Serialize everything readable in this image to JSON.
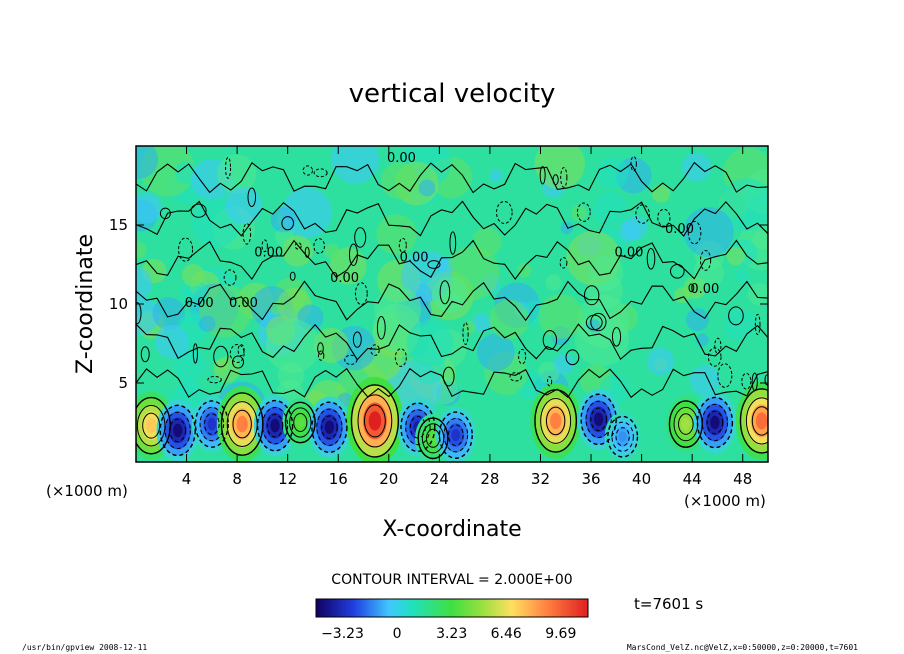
{
  "chart_data": {
    "type": "heatmap",
    "title": "vertical velocity",
    "xlabel": "X-coordinate",
    "ylabel": "Z-coordinate",
    "x_unit_left": "(×1000 m)",
    "x_unit_right": "(×1000 m)",
    "xlim": [
      0,
      50
    ],
    "ylim": [
      0,
      20
    ],
    "x_ticks": [
      "4",
      "8",
      "12",
      "16",
      "20",
      "24",
      "28",
      "32",
      "36",
      "40",
      "44",
      "48"
    ],
    "y_ticks": [
      "5",
      "10",
      "15"
    ],
    "contour_interval_label": "CONTOUR INTERVAL = 2.000E+00",
    "contour_labels": [
      "0.00",
      "0.00",
      "0.00",
      "0.00",
      "0.00",
      "0.00",
      "0.00",
      "0.00",
      "0.00"
    ],
    "colorbar": {
      "range": [
        -4.8,
        11.3
      ],
      "tick_labels": [
        "−3.23",
        "0",
        "3.23",
        "6.46",
        "9.69"
      ],
      "tick_values": [
        -3.23,
        0,
        3.23,
        6.46,
        9.69
      ]
    },
    "time_label": "t=7601 s",
    "cells": [
      {
        "x": 1.2,
        "z": 2.3,
        "w": 6
      },
      {
        "x": 3.3,
        "z": 2.0,
        "w": -4.5
      },
      {
        "x": 6.0,
        "z": 2.4,
        "w": -3.5
      },
      {
        "x": 8.4,
        "z": 2.4,
        "w": 7.5
      },
      {
        "x": 11.0,
        "z": 2.3,
        "w": -4.5
      },
      {
        "x": 13.0,
        "z": 2.5,
        "w": 2
      },
      {
        "x": 15.3,
        "z": 2.2,
        "w": -4.5
      },
      {
        "x": 18.9,
        "z": 2.6,
        "w": 10
      },
      {
        "x": 22.3,
        "z": 2.2,
        "w": -4
      },
      {
        "x": 23.5,
        "z": 1.5,
        "w": 2
      },
      {
        "x": 25.3,
        "z": 1.7,
        "w": -3.5
      },
      {
        "x": 33.2,
        "z": 2.6,
        "w": 7.5
      },
      {
        "x": 36.6,
        "z": 2.7,
        "w": -4.5
      },
      {
        "x": 38.5,
        "z": 1.6,
        "w": -2
      },
      {
        "x": 43.5,
        "z": 2.4,
        "w": 3.5
      },
      {
        "x": 45.8,
        "z": 2.5,
        "w": -4.5
      },
      {
        "x": 49.5,
        "z": 2.6,
        "w": 8
      }
    ]
  },
  "footer": {
    "left": "/usr/bin/gpview  2008-12-11",
    "right": "MarsCond_VelZ.nc@VelZ,x=0:50000,z=0:20000,t=7601"
  }
}
